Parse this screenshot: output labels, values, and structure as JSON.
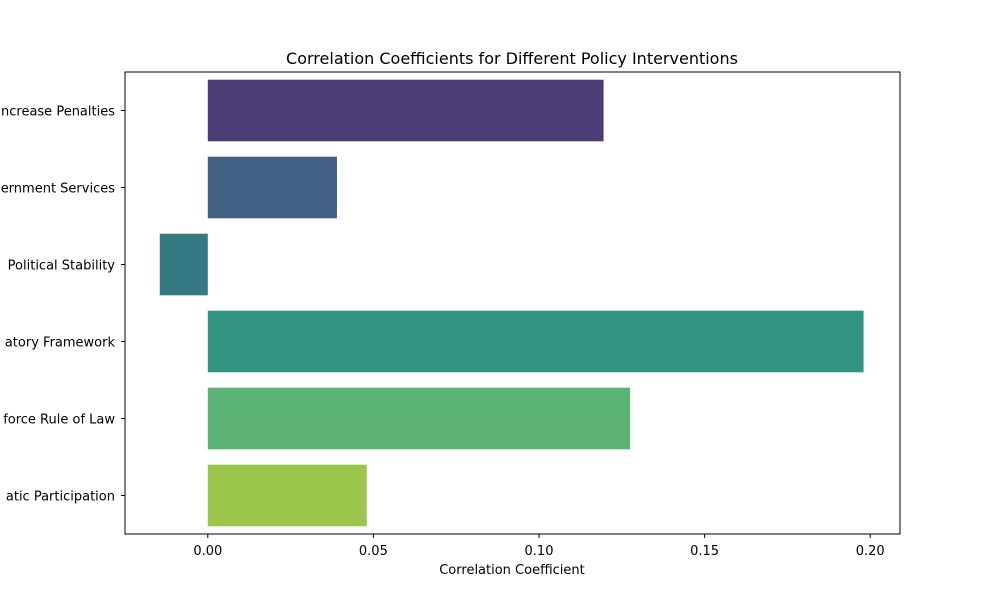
{
  "chart_data": {
    "type": "bar",
    "orientation": "horizontal",
    "title": "Correlation Coefficients for Different Policy Interventions",
    "xlabel": "Correlation Coefficient",
    "ylabel": "",
    "categories": [
      "Increase Penalties",
      "Improve Government Services",
      "Enhance Political Stability",
      "Strengthen Regulatory Framework",
      "Enforce Rule of Law",
      "Promote Democratic Participation"
    ],
    "visible_category_labels": [
      "ncrease Penalties",
      "ernment Services",
      "Political Stability",
      "atory Framework",
      "force Rule of Law",
      "atic Participation"
    ],
    "values": [
      0.1195,
      0.039,
      -0.0145,
      0.198,
      0.1275,
      0.048
    ],
    "colors": [
      "#4a3d76",
      "#426184",
      "#357983",
      "#319380",
      "#5bb275",
      "#9bc64c"
    ],
    "xlim": [
      -0.025,
      0.209
    ],
    "xticks": [
      0.0,
      0.05,
      0.1,
      0.15,
      0.2
    ],
    "xtick_labels": [
      "0.00",
      "0.05",
      "0.10",
      "0.15",
      "0.20"
    ],
    "grid": false,
    "legend": "none"
  }
}
